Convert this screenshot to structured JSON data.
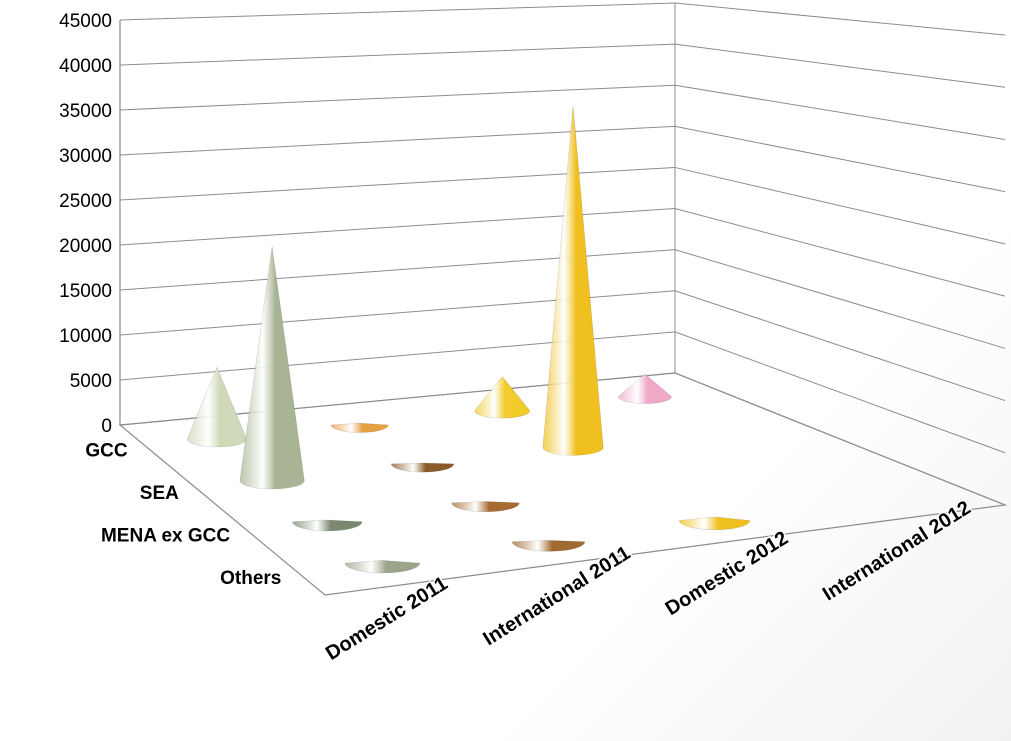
{
  "chart_data": {
    "type": "bar",
    "subtype": "3d-cone",
    "title": "",
    "xlabel": "",
    "ylabel": "",
    "ylim": [
      0,
      45000
    ],
    "yticks": [
      0,
      5000,
      10000,
      15000,
      20000,
      25000,
      30000,
      35000,
      40000,
      45000
    ],
    "grid": true,
    "legend": "none",
    "categories": [
      "Domestic 2011",
      "International 2011",
      "Domestic 2012",
      "International 2012"
    ],
    "series": [
      {
        "name": "GCC",
        "values": [
          8000,
          200,
          3800,
          2500
        ],
        "colors": [
          "#cfd8b8",
          "#e8a040",
          "#f2cc2a",
          "#f0a8c8"
        ]
      },
      {
        "name": "SEA",
        "values": [
          26000,
          100,
          38000,
          0
        ],
        "colors": [
          "#a8b494",
          "#8a5a28",
          "#f0c020",
          "#f0a8c8"
        ]
      },
      {
        "name": "MENA ex GCC",
        "values": [
          200,
          150,
          0,
          0
        ],
        "colors": [
          "#7a8872",
          "#a86a30",
          "#f0c020",
          "#f0a8c8"
        ]
      },
      {
        "name": "Others",
        "values": [
          300,
          150,
          400,
          0
        ],
        "colors": [
          "#9aa58a",
          "#a06a30",
          "#f0c020",
          "#f0a8c8"
        ]
      }
    ]
  }
}
